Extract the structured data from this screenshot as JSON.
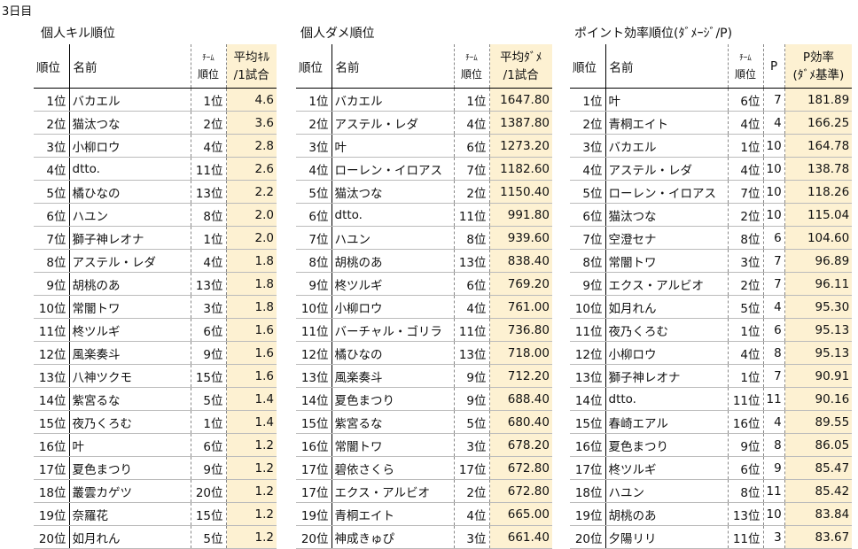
{
  "day_label": "3日目",
  "kill": {
    "title": "個人キル順位",
    "headers": {
      "rank": "順位",
      "name": "名前",
      "team_top": "ﾁｰﾑ",
      "team_bottom": "順位",
      "value_top": "平均ｷﾙ",
      "value_bottom": "/1試合"
    },
    "rows": [
      {
        "rank": "1位",
        "name": "バカエル",
        "team": "1位",
        "value": "4.6"
      },
      {
        "rank": "2位",
        "name": "猫汰つな",
        "team": "2位",
        "value": "3.6"
      },
      {
        "rank": "3位",
        "name": "小柳ロウ",
        "team": "4位",
        "value": "2.8"
      },
      {
        "rank": "4位",
        "name": "dtto.",
        "team": "11位",
        "value": "2.6"
      },
      {
        "rank": "5位",
        "name": "橘ひなの",
        "team": "13位",
        "value": "2.2"
      },
      {
        "rank": "6位",
        "name": "ハユン",
        "team": "8位",
        "value": "2.0"
      },
      {
        "rank": "7位",
        "name": "獅子神レオナ",
        "team": "1位",
        "value": "2.0"
      },
      {
        "rank": "8位",
        "name": "アステル・レダ",
        "team": "4位",
        "value": "1.8"
      },
      {
        "rank": "9位",
        "name": "胡桃のあ",
        "team": "13位",
        "value": "1.8"
      },
      {
        "rank": "10位",
        "name": "常闇トワ",
        "team": "3位",
        "value": "1.8"
      },
      {
        "rank": "11位",
        "name": "柊ツルギ",
        "team": "6位",
        "value": "1.6"
      },
      {
        "rank": "12位",
        "name": "風楽奏斗",
        "team": "9位",
        "value": "1.6"
      },
      {
        "rank": "13位",
        "name": "八神ツクモ",
        "team": "15位",
        "value": "1.6"
      },
      {
        "rank": "14位",
        "name": "紫宮るな",
        "team": "5位",
        "value": "1.4"
      },
      {
        "rank": "15位",
        "name": "夜乃くろむ",
        "team": "1位",
        "value": "1.4"
      },
      {
        "rank": "16位",
        "name": "叶",
        "team": "6位",
        "value": "1.2"
      },
      {
        "rank": "17位",
        "name": "夏色まつり",
        "team": "9位",
        "value": "1.2"
      },
      {
        "rank": "18位",
        "name": "叢雲カゲツ",
        "team": "20位",
        "value": "1.2"
      },
      {
        "rank": "19位",
        "name": "奈羅花",
        "team": "15位",
        "value": "1.2"
      },
      {
        "rank": "20位",
        "name": "如月れん",
        "team": "5位",
        "value": "1.2"
      }
    ]
  },
  "damage": {
    "title": "個人ダメ順位",
    "headers": {
      "rank": "順位",
      "name": "名前",
      "team_top": "ﾁｰﾑ",
      "team_bottom": "順位",
      "value_top": "平均ﾀﾞﾒ",
      "value_bottom": "/1試合"
    },
    "rows": [
      {
        "rank": "1位",
        "name": "バカエル",
        "team": "1位",
        "value": "1647.80"
      },
      {
        "rank": "2位",
        "name": "アステル・レダ",
        "team": "4位",
        "value": "1387.80"
      },
      {
        "rank": "3位",
        "name": "叶",
        "team": "6位",
        "value": "1273.20"
      },
      {
        "rank": "4位",
        "name": "ローレン・イロアス",
        "team": "7位",
        "value": "1182.60"
      },
      {
        "rank": "5位",
        "name": "猫汰つな",
        "team": "2位",
        "value": "1150.40"
      },
      {
        "rank": "6位",
        "name": "dtto.",
        "team": "11位",
        "value": "991.80"
      },
      {
        "rank": "7位",
        "name": "ハユン",
        "team": "8位",
        "value": "939.60"
      },
      {
        "rank": "8位",
        "name": "胡桃のあ",
        "team": "13位",
        "value": "838.40"
      },
      {
        "rank": "9位",
        "name": "柊ツルギ",
        "team": "6位",
        "value": "769.20"
      },
      {
        "rank": "10位",
        "name": "小柳ロウ",
        "team": "4位",
        "value": "761.00"
      },
      {
        "rank": "11位",
        "name": "バーチャル・ゴリラ",
        "team": "11位",
        "value": "736.80"
      },
      {
        "rank": "12位",
        "name": "橘ひなの",
        "team": "13位",
        "value": "718.00"
      },
      {
        "rank": "13位",
        "name": "風楽奏斗",
        "team": "9位",
        "value": "712.20"
      },
      {
        "rank": "14位",
        "name": "夏色まつり",
        "team": "9位",
        "value": "688.40"
      },
      {
        "rank": "15位",
        "name": "紫宮るな",
        "team": "5位",
        "value": "680.40"
      },
      {
        "rank": "16位",
        "name": "常闇トワ",
        "team": "3位",
        "value": "678.20"
      },
      {
        "rank": "17位",
        "name": "碧依さくら",
        "team": "17位",
        "value": "672.80"
      },
      {
        "rank": "17位",
        "name": "エクス・アルビオ",
        "team": "2位",
        "value": "672.80"
      },
      {
        "rank": "19位",
        "name": "青桐エイト",
        "team": "4位",
        "value": "665.00"
      },
      {
        "rank": "20位",
        "name": "神成きゅぴ",
        "team": "3位",
        "value": "661.40"
      }
    ]
  },
  "points": {
    "title": "ポイント効率順位(ﾀﾞﾒｰｼﾞ/P)",
    "headers": {
      "rank": "順位",
      "name": "名前",
      "team_top": "ﾁｰﾑ",
      "team_bottom": "順位",
      "p": "P",
      "value_top": "P効率",
      "value_bottom": "(ﾀﾞﾒ基準)"
    },
    "rows": [
      {
        "rank": "1位",
        "name": "叶",
        "team": "6位",
        "p": "7",
        "value": "181.89"
      },
      {
        "rank": "2位",
        "name": "青桐エイト",
        "team": "4位",
        "p": "4",
        "value": "166.25"
      },
      {
        "rank": "3位",
        "name": "バカエル",
        "team": "1位",
        "p": "10",
        "value": "164.78"
      },
      {
        "rank": "4位",
        "name": "アステル・レダ",
        "team": "4位",
        "p": "10",
        "value": "138.78"
      },
      {
        "rank": "5位",
        "name": "ローレン・イロアス",
        "team": "7位",
        "p": "10",
        "value": "118.26"
      },
      {
        "rank": "6位",
        "name": "猫汰つな",
        "team": "2位",
        "p": "10",
        "value": "115.04"
      },
      {
        "rank": "7位",
        "name": "空澄セナ",
        "team": "8位",
        "p": "6",
        "value": "104.60"
      },
      {
        "rank": "8位",
        "name": "常闇トワ",
        "team": "3位",
        "p": "7",
        "value": "96.89"
      },
      {
        "rank": "9位",
        "name": "エクス・アルビオ",
        "team": "2位",
        "p": "7",
        "value": "96.11"
      },
      {
        "rank": "10位",
        "name": "如月れん",
        "team": "5位",
        "p": "4",
        "value": "95.30"
      },
      {
        "rank": "11位",
        "name": "夜乃くろむ",
        "team": "1位",
        "p": "6",
        "value": "95.13"
      },
      {
        "rank": "12位",
        "name": "小柳ロウ",
        "team": "4位",
        "p": "8",
        "value": "95.13"
      },
      {
        "rank": "13位",
        "name": "獅子神レオナ",
        "team": "1位",
        "p": "7",
        "value": "90.91"
      },
      {
        "rank": "14位",
        "name": "dtto.",
        "team": "11位",
        "p": "11",
        "value": "90.16"
      },
      {
        "rank": "15位",
        "name": "春崎エアル",
        "team": "16位",
        "p": "4",
        "value": "89.55"
      },
      {
        "rank": "16位",
        "name": "夏色まつり",
        "team": "9位",
        "p": "8",
        "value": "86.05"
      },
      {
        "rank": "17位",
        "name": "柊ツルギ",
        "team": "6位",
        "p": "9",
        "value": "85.47"
      },
      {
        "rank": "18位",
        "name": "ハユン",
        "team": "8位",
        "p": "11",
        "value": "85.42"
      },
      {
        "rank": "19位",
        "name": "胡桃のあ",
        "team": "13位",
        "p": "10",
        "value": "83.84"
      },
      {
        "rank": "20位",
        "name": "夕陽リリ",
        "team": "11位",
        "p": "3",
        "value": "83.67"
      }
    ]
  }
}
